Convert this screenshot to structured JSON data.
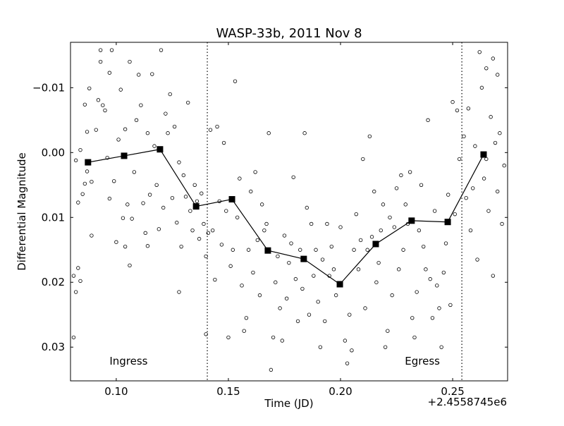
{
  "chart_data": {
    "type": "scatter",
    "title": "WASP-33b, 2011 Nov 8",
    "xlabel": "Time (JD)",
    "ylabel": "Differential Magnitude",
    "x_offset_label": "+2.4558745e6",
    "xlim": [
      0.0796,
      0.2745
    ],
    "ylim": [
      0.0352,
      -0.017
    ],
    "y_inverted": true,
    "xticks": [
      {
        "v": 0.1,
        "label": "0.10"
      },
      {
        "v": 0.15,
        "label": "0.15"
      },
      {
        "v": 0.2,
        "label": "0.20"
      },
      {
        "v": 0.25,
        "label": "0.25"
      }
    ],
    "yticks": [
      {
        "v": -0.01,
        "label": "−0.01"
      },
      {
        "v": 0.0,
        "label": "0.00"
      },
      {
        "v": 0.01,
        "label": "0.01"
      },
      {
        "v": 0.02,
        "label": "0.02"
      },
      {
        "v": 0.03,
        "label": "0.03"
      }
    ],
    "grid": false,
    "vlines": [
      {
        "x": 0.1406,
        "style": "dotted"
      },
      {
        "x": 0.2541,
        "style": "dotted"
      }
    ],
    "annotations": [
      {
        "text": "Ingress",
        "x": 0.1055,
        "y": 0.0327
      },
      {
        "text": "Egress",
        "x": 0.2365,
        "y": 0.0327
      }
    ],
    "binned_series": {
      "name": "binned",
      "marker": "square",
      "x": [
        0.0874,
        0.1035,
        0.1195,
        0.1356,
        0.1516,
        0.1676,
        0.1836,
        0.1997,
        0.2157,
        0.2317,
        0.2478,
        0.2638
      ],
      "y": [
        0.0015,
        0.0005,
        -0.0005,
        0.0083,
        0.0072,
        0.0151,
        0.0164,
        0.0203,
        0.0141,
        0.0105,
        0.0107,
        0.0003
      ]
    },
    "raw_series": {
      "name": "raw",
      "marker": "open-circle",
      "points": [
        [
          0.081,
          0.0285
        ],
        [
          0.081,
          0.019
        ],
        [
          0.082,
          0.0012
        ],
        [
          0.082,
          0.0215
        ],
        [
          0.083,
          0.0178
        ],
        [
          0.083,
          0.0077
        ],
        [
          0.084,
          0.0198
        ],
        [
          0.084,
          -0.0004
        ],
        [
          0.085,
          0.0064
        ],
        [
          0.086,
          -0.0074
        ],
        [
          0.086,
          0.0048
        ],
        [
          0.087,
          0.0029
        ],
        [
          0.087,
          -0.0032
        ],
        [
          0.088,
          -0.0099
        ],
        [
          0.089,
          0.0128
        ],
        [
          0.089,
          0.0045
        ],
        [
          0.091,
          -0.0035
        ],
        [
          0.092,
          -0.0081
        ],
        [
          0.093,
          -0.0158
        ],
        [
          0.093,
          -0.014
        ],
        [
          0.094,
          -0.0073
        ],
        [
          0.095,
          -0.0065
        ],
        [
          0.096,
          0.0008
        ],
        [
          0.097,
          -0.0123
        ],
        [
          0.097,
          0.0071
        ],
        [
          0.098,
          -0.0158
        ],
        [
          0.099,
          0.0044
        ],
        [
          0.1,
          0.0138
        ],
        [
          0.101,
          -0.002
        ],
        [
          0.102,
          -0.0097
        ],
        [
          0.103,
          0.0101
        ],
        [
          0.104,
          -0.0036
        ],
        [
          0.104,
          0.0145
        ],
        [
          0.105,
          0.008
        ],
        [
          0.106,
          0.0174
        ],
        [
          0.106,
          -0.014
        ],
        [
          0.107,
          0.0102
        ],
        [
          0.108,
          0.003
        ],
        [
          0.109,
          -0.005
        ],
        [
          0.11,
          -0.012
        ],
        [
          0.111,
          -0.0073
        ],
        [
          0.112,
          0.0078
        ],
        [
          0.113,
          0.0124
        ],
        [
          0.114,
          -0.003
        ],
        [
          0.114,
          0.0144
        ],
        [
          0.115,
          0.0065
        ],
        [
          0.116,
          -0.0121
        ],
        [
          0.117,
          -0.001
        ],
        [
          0.118,
          0.005
        ],
        [
          0.119,
          0.0118
        ],
        [
          0.12,
          -0.0158
        ],
        [
          0.121,
          0.0085
        ],
        [
          0.122,
          -0.006
        ],
        [
          0.123,
          -0.003
        ],
        [
          0.124,
          -0.009
        ],
        [
          0.125,
          0.007
        ],
        [
          0.126,
          -0.004
        ],
        [
          0.127,
          0.0108
        ],
        [
          0.128,
          0.0215
        ],
        [
          0.128,
          0.0015
        ],
        [
          0.129,
          0.0145
        ],
        [
          0.13,
          0.0035
        ],
        [
          0.131,
          0.0068
        ],
        [
          0.132,
          -0.0077
        ],
        [
          0.133,
          0.009
        ],
        [
          0.134,
          0.012
        ],
        [
          0.135,
          0.005
        ],
        [
          0.136,
          0.0075
        ],
        [
          0.137,
          0.0133
        ],
        [
          0.138,
          0.0063
        ],
        [
          0.139,
          0.011
        ],
        [
          0.14,
          0.028
        ],
        [
          0.14,
          0.016
        ],
        [
          0.141,
          0.0124
        ],
        [
          0.142,
          -0.0035
        ],
        [
          0.143,
          0.012
        ],
        [
          0.144,
          0.0196
        ],
        [
          0.145,
          -0.004
        ],
        [
          0.146,
          0.0075
        ],
        [
          0.147,
          0.0142
        ],
        [
          0.148,
          -0.0015
        ],
        [
          0.149,
          0.009
        ],
        [
          0.15,
          0.0285
        ],
        [
          0.151,
          0.0175
        ],
        [
          0.152,
          0.015
        ],
        [
          0.153,
          -0.011
        ],
        [
          0.154,
          0.01
        ],
        [
          0.155,
          0.004
        ],
        [
          0.156,
          0.0205
        ],
        [
          0.157,
          0.0275
        ],
        [
          0.158,
          0.0255
        ],
        [
          0.159,
          0.015
        ],
        [
          0.16,
          0.006
        ],
        [
          0.161,
          0.0185
        ],
        [
          0.162,
          0.003
        ],
        [
          0.163,
          0.0135
        ],
        [
          0.164,
          0.022
        ],
        [
          0.165,
          0.008
        ],
        [
          0.166,
          0.012
        ],
        [
          0.167,
          0.011
        ],
        [
          0.168,
          -0.003
        ],
        [
          0.169,
          0.0335
        ],
        [
          0.17,
          0.0285
        ],
        [
          0.171,
          0.02
        ],
        [
          0.172,
          0.016
        ],
        [
          0.173,
          0.024
        ],
        [
          0.174,
          0.029
        ],
        [
          0.175,
          0.0128
        ],
        [
          0.176,
          0.0225
        ],
        [
          0.177,
          0.017
        ],
        [
          0.178,
          0.014
        ],
        [
          0.179,
          0.0038
        ],
        [
          0.18,
          0.0195
        ],
        [
          0.181,
          0.026
        ],
        [
          0.182,
          0.015
        ],
        [
          0.183,
          0.021
        ],
        [
          0.184,
          -0.003
        ],
        [
          0.185,
          0.0085
        ],
        [
          0.186,
          0.025
        ],
        [
          0.187,
          0.011
        ],
        [
          0.188,
          0.019
        ],
        [
          0.189,
          0.015
        ],
        [
          0.19,
          0.023
        ],
        [
          0.191,
          0.03
        ],
        [
          0.192,
          0.0165
        ],
        [
          0.193,
          0.026
        ],
        [
          0.194,
          0.011
        ],
        [
          0.195,
          0.019
        ],
        [
          0.196,
          0.0145
        ],
        [
          0.197,
          0.018
        ],
        [
          0.198,
          0.022
        ],
        [
          0.2,
          0.0115
        ],
        [
          0.202,
          0.029
        ],
        [
          0.203,
          0.0325
        ],
        [
          0.204,
          0.025
        ],
        [
          0.205,
          0.0305
        ],
        [
          0.206,
          0.015
        ],
        [
          0.207,
          0.0095
        ],
        [
          0.208,
          0.018
        ],
        [
          0.209,
          0.0135
        ],
        [
          0.21,
          0.001
        ],
        [
          0.211,
          0.024
        ],
        [
          0.212,
          0.015
        ],
        [
          0.213,
          -0.0025
        ],
        [
          0.214,
          0.013
        ],
        [
          0.215,
          0.006
        ],
        [
          0.216,
          0.02
        ],
        [
          0.217,
          0.017
        ],
        [
          0.218,
          0.012
        ],
        [
          0.219,
          0.008
        ],
        [
          0.22,
          0.03
        ],
        [
          0.221,
          0.0275
        ],
        [
          0.222,
          0.01
        ],
        [
          0.223,
          0.022
        ],
        [
          0.224,
          0.0115
        ],
        [
          0.225,
          0.0055
        ],
        [
          0.226,
          0.018
        ],
        [
          0.227,
          0.0035
        ],
        [
          0.228,
          0.015
        ],
        [
          0.229,
          0.008
        ],
        [
          0.23,
          0.011
        ],
        [
          0.231,
          0.003
        ],
        [
          0.232,
          0.0255
        ],
        [
          0.233,
          0.0285
        ],
        [
          0.234,
          0.0215
        ],
        [
          0.235,
          0.012
        ],
        [
          0.236,
          0.005
        ],
        [
          0.237,
          0.0145
        ],
        [
          0.238,
          0.018
        ],
        [
          0.239,
          -0.005
        ],
        [
          0.24,
          0.0195
        ],
        [
          0.241,
          0.0255
        ],
        [
          0.242,
          0.009
        ],
        [
          0.243,
          0.0205
        ],
        [
          0.244,
          0.024
        ],
        [
          0.245,
          0.03
        ],
        [
          0.246,
          0.0185
        ],
        [
          0.247,
          0.014
        ],
        [
          0.248,
          0.0065
        ],
        [
          0.249,
          0.0235
        ],
        [
          0.25,
          -0.0078
        ],
        [
          0.251,
          0.0095
        ],
        [
          0.252,
          -0.0065
        ],
        [
          0.253,
          0.001
        ],
        [
          0.255,
          -0.0025
        ],
        [
          0.256,
          0.007
        ],
        [
          0.257,
          -0.0068
        ],
        [
          0.258,
          0.012
        ],
        [
          0.259,
          0.0055
        ],
        [
          0.26,
          -0.001
        ],
        [
          0.261,
          0.0165
        ],
        [
          0.262,
          -0.0155
        ],
        [
          0.263,
          -0.01
        ],
        [
          0.264,
          0.004
        ],
        [
          0.265,
          -0.013
        ],
        [
          0.266,
          0.009
        ],
        [
          0.267,
          -0.0055
        ],
        [
          0.268,
          0.019
        ],
        [
          0.269,
          -0.0015
        ],
        [
          0.27,
          0.006
        ],
        [
          0.271,
          -0.003
        ],
        [
          0.272,
          0.011
        ],
        [
          0.273,
          0.002
        ],
        [
          0.268,
          -0.0145
        ],
        [
          0.265,
          0.001
        ],
        [
          0.27,
          -0.012
        ]
      ]
    }
  }
}
